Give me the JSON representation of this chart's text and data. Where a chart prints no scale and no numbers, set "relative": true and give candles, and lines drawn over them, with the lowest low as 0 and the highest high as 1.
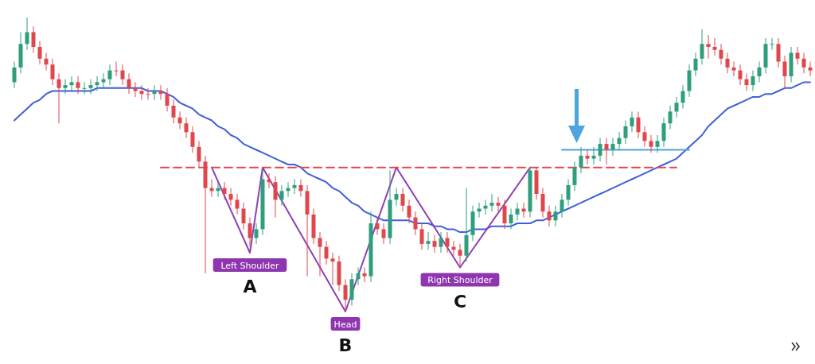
{
  "chart_data": {
    "type": "candlestick",
    "relative": true,
    "categories": [
      null,
      null,
      null,
      null,
      null,
      null,
      null,
      null,
      null,
      null,
      null,
      null,
      null,
      null,
      null,
      null,
      null,
      null,
      null,
      null,
      null,
      null,
      null,
      null,
      null,
      null,
      null,
      null,
      null,
      null,
      null,
      null,
      null,
      null,
      null,
      null,
      null,
      null,
      null,
      null,
      null,
      null,
      null,
      null,
      null,
      null,
      null,
      null,
      null,
      null,
      null,
      null,
      null,
      null,
      null,
      null,
      null,
      null,
      null,
      null,
      null,
      null,
      null,
      null,
      null,
      null,
      null,
      null,
      null,
      null,
      null,
      null,
      null,
      null,
      null,
      null,
      null,
      null,
      null,
      null,
      null,
      null,
      null,
      null,
      null,
      null,
      null,
      null,
      null,
      null,
      null,
      null,
      null,
      null,
      null,
      null,
      null,
      null,
      null,
      null,
      null,
      null,
      null,
      null,
      null,
      null,
      null,
      null,
      null,
      null,
      null,
      null,
      null,
      null,
      null,
      null,
      null,
      null,
      null,
      null,
      null,
      null,
      null,
      null,
      null,
      null
    ],
    "ohlc": [
      [
        0.78,
        0.85,
        0.76,
        0.83
      ],
      [
        0.83,
        0.95,
        0.81,
        0.91
      ],
      [
        0.91,
        1.0,
        0.89,
        0.95
      ],
      [
        0.95,
        0.97,
        0.88,
        0.9
      ],
      [
        0.9,
        0.92,
        0.84,
        0.86
      ],
      [
        0.86,
        0.88,
        0.82,
        0.84
      ],
      [
        0.84,
        0.86,
        0.77,
        0.79
      ],
      [
        0.79,
        0.81,
        0.64,
        0.76
      ],
      [
        0.76,
        0.79,
        0.74,
        0.77
      ],
      [
        0.77,
        0.8,
        0.75,
        0.78
      ],
      [
        0.78,
        0.8,
        0.74,
        0.76
      ],
      [
        0.76,
        0.78,
        0.74,
        0.76
      ],
      [
        0.76,
        0.79,
        0.74,
        0.77
      ],
      [
        0.77,
        0.8,
        0.75,
        0.78
      ],
      [
        0.78,
        0.81,
        0.76,
        0.79
      ],
      [
        0.79,
        0.84,
        0.77,
        0.82
      ],
      [
        0.82,
        0.85,
        0.8,
        0.82
      ],
      [
        0.82,
        0.84,
        0.77,
        0.79
      ],
      [
        0.79,
        0.81,
        0.74,
        0.76
      ],
      [
        0.76,
        0.78,
        0.73,
        0.75
      ],
      [
        0.75,
        0.77,
        0.72,
        0.74
      ],
      [
        0.74,
        0.76,
        0.72,
        0.74
      ],
      [
        0.74,
        0.77,
        0.72,
        0.75
      ],
      [
        0.75,
        0.77,
        0.72,
        0.74
      ],
      [
        0.74,
        0.76,
        0.68,
        0.7
      ],
      [
        0.7,
        0.72,
        0.64,
        0.66
      ],
      [
        0.66,
        0.68,
        0.62,
        0.64
      ],
      [
        0.64,
        0.66,
        0.59,
        0.61
      ],
      [
        0.61,
        0.63,
        0.54,
        0.56
      ],
      [
        0.56,
        0.58,
        0.49,
        0.51
      ],
      [
        0.51,
        0.53,
        0.13,
        0.42
      ],
      [
        0.42,
        0.45,
        0.39,
        0.41
      ],
      [
        0.41,
        0.44,
        0.39,
        0.42
      ],
      [
        0.42,
        0.44,
        0.38,
        0.4
      ],
      [
        0.4,
        0.42,
        0.36,
        0.38
      ],
      [
        0.38,
        0.4,
        0.33,
        0.35
      ],
      [
        0.35,
        0.37,
        0.28,
        0.3
      ],
      [
        0.3,
        0.32,
        0.22,
        0.25
      ],
      [
        0.25,
        0.3,
        0.23,
        0.28
      ],
      [
        0.28,
        0.48,
        0.26,
        0.45
      ],
      [
        0.45,
        0.47,
        0.42,
        0.44
      ],
      [
        0.44,
        0.46,
        0.32,
        0.38
      ],
      [
        0.38,
        0.43,
        0.36,
        0.41
      ],
      [
        0.41,
        0.44,
        0.39,
        0.42
      ],
      [
        0.42,
        0.45,
        0.4,
        0.43
      ],
      [
        0.43,
        0.45,
        0.39,
        0.41
      ],
      [
        0.41,
        0.43,
        0.12,
        0.33
      ],
      [
        0.33,
        0.35,
        0.23,
        0.25
      ],
      [
        0.25,
        0.27,
        0.12,
        0.22
      ],
      [
        0.22,
        0.24,
        0.16,
        0.18
      ],
      [
        0.18,
        0.2,
        0.09,
        0.17
      ],
      [
        0.17,
        0.19,
        0.07,
        0.09
      ],
      [
        0.09,
        0.11,
        0.0,
        0.04
      ],
      [
        0.04,
        0.13,
        0.02,
        0.11
      ],
      [
        0.11,
        0.15,
        0.09,
        0.13
      ],
      [
        0.13,
        0.15,
        0.1,
        0.12
      ],
      [
        0.12,
        0.34,
        0.1,
        0.3
      ],
      [
        0.3,
        0.32,
        0.26,
        0.28
      ],
      [
        0.28,
        0.3,
        0.23,
        0.25
      ],
      [
        0.25,
        0.48,
        0.23,
        0.38
      ],
      [
        0.38,
        0.42,
        0.36,
        0.4
      ],
      [
        0.4,
        0.42,
        0.34,
        0.36
      ],
      [
        0.36,
        0.38,
        0.3,
        0.32
      ],
      [
        0.32,
        0.34,
        0.26,
        0.28
      ],
      [
        0.28,
        0.3,
        0.21,
        0.23
      ],
      [
        0.23,
        0.27,
        0.21,
        0.24
      ],
      [
        0.24,
        0.26,
        0.2,
        0.22
      ],
      [
        0.22,
        0.27,
        0.2,
        0.25
      ],
      [
        0.25,
        0.27,
        0.2,
        0.22
      ],
      [
        0.22,
        0.24,
        0.19,
        0.21
      ],
      [
        0.21,
        0.23,
        0.15,
        0.19
      ],
      [
        0.19,
        0.42,
        0.17,
        0.26
      ],
      [
        0.26,
        0.36,
        0.24,
        0.34
      ],
      [
        0.34,
        0.37,
        0.32,
        0.35
      ],
      [
        0.35,
        0.38,
        0.33,
        0.36
      ],
      [
        0.36,
        0.4,
        0.34,
        0.37
      ],
      [
        0.37,
        0.39,
        0.34,
        0.36
      ],
      [
        0.36,
        0.38,
        0.28,
        0.3
      ],
      [
        0.3,
        0.35,
        0.28,
        0.33
      ],
      [
        0.33,
        0.37,
        0.31,
        0.35
      ],
      [
        0.35,
        0.37,
        0.32,
        0.34
      ],
      [
        0.34,
        0.49,
        0.32,
        0.48
      ],
      [
        0.48,
        0.49,
        0.38,
        0.4
      ],
      [
        0.4,
        0.42,
        0.32,
        0.34
      ],
      [
        0.34,
        0.36,
        0.29,
        0.31
      ],
      [
        0.31,
        0.36,
        0.29,
        0.34
      ],
      [
        0.34,
        0.4,
        0.32,
        0.38
      ],
      [
        0.38,
        0.45,
        0.36,
        0.43
      ],
      [
        0.43,
        0.51,
        0.41,
        0.49
      ],
      [
        0.49,
        0.56,
        0.47,
        0.53
      ],
      [
        0.53,
        0.55,
        0.5,
        0.52
      ],
      [
        0.52,
        0.56,
        0.5,
        0.53
      ],
      [
        0.53,
        0.59,
        0.51,
        0.57
      ],
      [
        0.57,
        0.59,
        0.5,
        0.55
      ],
      [
        0.55,
        0.59,
        0.53,
        0.57
      ],
      [
        0.57,
        0.61,
        0.55,
        0.59
      ],
      [
        0.59,
        0.65,
        0.57,
        0.63
      ],
      [
        0.63,
        0.68,
        0.61,
        0.66
      ],
      [
        0.66,
        0.68,
        0.59,
        0.61
      ],
      [
        0.61,
        0.63,
        0.56,
        0.58
      ],
      [
        0.58,
        0.6,
        0.54,
        0.56
      ],
      [
        0.56,
        0.6,
        0.54,
        0.58
      ],
      [
        0.58,
        0.66,
        0.56,
        0.64
      ],
      [
        0.64,
        0.7,
        0.62,
        0.68
      ],
      [
        0.68,
        0.73,
        0.66,
        0.71
      ],
      [
        0.71,
        0.77,
        0.69,
        0.75
      ],
      [
        0.75,
        0.84,
        0.73,
        0.82
      ],
      [
        0.82,
        0.88,
        0.8,
        0.86
      ],
      [
        0.86,
        0.96,
        0.84,
        0.91
      ],
      [
        0.91,
        0.94,
        0.86,
        0.9
      ],
      [
        0.9,
        0.93,
        0.87,
        0.89
      ],
      [
        0.89,
        0.91,
        0.84,
        0.86
      ],
      [
        0.86,
        0.88,
        0.81,
        0.83
      ],
      [
        0.83,
        0.85,
        0.8,
        0.82
      ],
      [
        0.82,
        0.84,
        0.77,
        0.79
      ],
      [
        0.79,
        0.81,
        0.75,
        0.77
      ],
      [
        0.77,
        0.82,
        0.75,
        0.8
      ],
      [
        0.8,
        0.85,
        0.78,
        0.83
      ],
      [
        0.83,
        0.93,
        0.81,
        0.91
      ],
      [
        0.91,
        0.93,
        0.89,
        0.91
      ],
      [
        0.91,
        0.93,
        0.83,
        0.85
      ],
      [
        0.85,
        0.87,
        0.76,
        0.8
      ],
      [
        0.8,
        0.9,
        0.78,
        0.88
      ],
      [
        0.88,
        0.9,
        0.84,
        0.86
      ],
      [
        0.86,
        0.88,
        0.81,
        0.83
      ],
      [
        0.83,
        0.85,
        0.8,
        0.82
      ]
    ],
    "colors": [
      "#2f9e7c",
      "#2f9e7c",
      "#2f9e7c",
      "#e0474c",
      "#e0474c",
      "#e0474c",
      "#e0474c",
      "#e0474c",
      "#2f9e7c",
      "#2f9e7c",
      "#e0474c",
      "#2f9e7c",
      "#2f9e7c",
      "#2f9e7c",
      "#2f9e7c",
      "#2f9e7c",
      "#e0474c",
      "#e0474c",
      "#e0474c",
      "#e0474c",
      "#e0474c",
      "#e0474c",
      "#2f9e7c",
      "#e0474c",
      "#e0474c",
      "#e0474c",
      "#e0474c",
      "#e0474c",
      "#e0474c",
      "#e0474c",
      "#e0474c",
      "#e0474c",
      "#2f9e7c",
      "#e0474c",
      "#e0474c",
      "#e0474c",
      "#e0474c",
      "#e0474c",
      "#2f9e7c",
      "#2f9e7c",
      "#e0474c",
      "#e0474c",
      "#2f9e7c",
      "#2f9e7c",
      "#2f9e7c",
      "#e0474c",
      "#e0474c",
      "#e0474c",
      "#e0474c",
      "#e0474c",
      "#e0474c",
      "#e0474c",
      "#e0474c",
      "#2f9e7c",
      "#2f9e7c",
      "#e0474c",
      "#2f9e7c",
      "#e0474c",
      "#e0474c",
      "#2f9e7c",
      "#2f9e7c",
      "#e0474c",
      "#e0474c",
      "#e0474c",
      "#e0474c",
      "#2f9e7c",
      "#e0474c",
      "#2f9e7c",
      "#e0474c",
      "#e0474c",
      "#e0474c",
      "#2f9e7c",
      "#2f9e7c",
      "#2f9e7c",
      "#2f9e7c",
      "#2f9e7c",
      "#e0474c",
      "#e0474c",
      "#2f9e7c",
      "#2f9e7c",
      "#e0474c",
      "#2f9e7c",
      "#e0474c",
      "#e0474c",
      "#e0474c",
      "#2f9e7c",
      "#2f9e7c",
      "#2f9e7c",
      "#2f9e7c",
      "#2f9e7c",
      "#e0474c",
      "#2f9e7c",
      "#2f9e7c",
      "#e0474c",
      "#2f9e7c",
      "#2f9e7c",
      "#2f9e7c",
      "#2f9e7c",
      "#e0474c",
      "#e0474c",
      "#e0474c",
      "#2f9e7c",
      "#2f9e7c",
      "#2f9e7c",
      "#2f9e7c",
      "#2f9e7c",
      "#2f9e7c",
      "#2f9e7c",
      "#2f9e7c",
      "#e0474c",
      "#e0474c",
      "#e0474c",
      "#e0474c",
      "#e0474c",
      "#e0474c",
      "#e0474c",
      "#2f9e7c",
      "#2f9e7c",
      "#2f9e7c",
      "#2f9e7c",
      "#e0474c",
      "#e0474c",
      "#2f9e7c",
      "#e0474c",
      "#e0474c",
      "#e0474c"
    ],
    "series": [
      {
        "type": "line",
        "color": "#3f5fd8",
        "values": [
          0.65,
          0.67,
          0.69,
          0.71,
          0.72,
          0.74,
          0.75,
          0.75,
          0.75,
          0.75,
          0.75,
          0.75,
          0.75,
          0.76,
          0.76,
          0.76,
          0.76,
          0.76,
          0.76,
          0.76,
          0.76,
          0.75,
          0.75,
          0.75,
          0.74,
          0.73,
          0.71,
          0.7,
          0.69,
          0.67,
          0.66,
          0.65,
          0.63,
          0.62,
          0.6,
          0.59,
          0.57,
          0.56,
          0.55,
          0.54,
          0.53,
          0.52,
          0.51,
          0.5,
          0.5,
          0.49,
          0.47,
          0.46,
          0.45,
          0.44,
          0.42,
          0.41,
          0.39,
          0.37,
          0.36,
          0.34,
          0.33,
          0.32,
          0.31,
          0.31,
          0.31,
          0.31,
          0.31,
          0.3,
          0.3,
          0.3,
          0.29,
          0.29,
          0.28,
          0.28,
          0.27,
          0.27,
          0.28,
          0.28,
          0.28,
          0.29,
          0.29,
          0.29,
          0.29,
          0.3,
          0.3,
          0.3,
          0.31,
          0.31,
          0.32,
          0.33,
          0.34,
          0.35,
          0.36,
          0.37,
          0.38,
          0.39,
          0.4,
          0.41,
          0.42,
          0.43,
          0.44,
          0.45,
          0.46,
          0.47,
          0.48,
          0.49,
          0.5,
          0.51,
          0.52,
          0.54,
          0.56,
          0.58,
          0.6,
          0.63,
          0.65,
          0.67,
          0.69,
          0.7,
          0.71,
          0.72,
          0.73,
          0.73,
          0.74,
          0.74,
          0.75,
          0.76,
          0.76,
          0.77,
          0.78,
          0.78
        ]
      },
      {
        "type": "line",
        "color": "#8e3fb6",
        "values": [
          null,
          null,
          null,
          null,
          null,
          null,
          null,
          null,
          null,
          null,
          null,
          null,
          null,
          null,
          null,
          null,
          null,
          null,
          null,
          null,
          null,
          null,
          null,
          null,
          null,
          null,
          null,
          null,
          null,
          null,
          null,
          0.49,
          null,
          null,
          null,
          null,
          null,
          0.2,
          null,
          0.49,
          null,
          null,
          null,
          null,
          null,
          null,
          null,
          null,
          null,
          null,
          null,
          null,
          0,
          null,
          null,
          null,
          null,
          null,
          null,
          null,
          0.49,
          null,
          null,
          null,
          null,
          null,
          null,
          null,
          null,
          null,
          0.15,
          null,
          null,
          null,
          null,
          null,
          null,
          null,
          null,
          null,
          null,
          0.49,
          null,
          null,
          null,
          null,
          null,
          null,
          null,
          null,
          null,
          null,
          null,
          null,
          null,
          null,
          null,
          null,
          null,
          null,
          null,
          null,
          null,
          null,
          null,
          null,
          null,
          null,
          null,
          null,
          null,
          null,
          null,
          null,
          null,
          null,
          null,
          null,
          null,
          null,
          null,
          null,
          null,
          null,
          null,
          null
        ]
      },
      {
        "type": "line",
        "color": "#e0474c",
        "line_style": "dashed",
        "values": [
          null,
          null,
          null,
          null,
          null,
          null,
          null,
          null,
          null,
          null,
          null,
          null,
          null,
          null,
          null,
          null,
          null,
          null,
          null,
          null,
          null,
          null,
          null,
          0.49,
          null,
          null,
          null,
          null,
          null,
          null,
          null,
          null,
          null,
          null,
          null,
          null,
          null,
          null,
          null,
          null,
          null,
          null,
          null,
          null,
          null,
          null,
          null,
          null,
          null,
          null,
          null,
          null,
          null,
          null,
          null,
          null,
          null,
          null,
          null,
          null,
          null,
          null,
          null,
          null,
          null,
          null,
          null,
          null,
          null,
          null,
          null,
          null,
          null,
          null,
          null,
          null,
          null,
          null,
          null,
          null,
          null,
          null,
          null,
          null,
          null,
          null,
          null,
          null,
          null,
          null,
          null,
          null,
          null,
          null,
          null,
          null,
          null,
          null,
          null,
          null,
          null,
          null,
          null,
          null,
          0.49,
          null,
          null,
          null,
          null,
          null,
          null,
          null,
          null,
          null,
          null,
          null,
          null,
          null,
          null,
          null,
          null,
          null,
          null,
          null,
          null,
          null
        ]
      },
      {
        "type": "line",
        "color": "#4ea4dc",
        "values": [
          null,
          null,
          null,
          null,
          null,
          null,
          null,
          null,
          null,
          null,
          null,
          null,
          null,
          null,
          null,
          null,
          null,
          null,
          null,
          null,
          null,
          null,
          null,
          null,
          null,
          null,
          null,
          null,
          null,
          null,
          null,
          null,
          null,
          null,
          null,
          null,
          null,
          null,
          null,
          null,
          null,
          null,
          null,
          null,
          null,
          null,
          null,
          null,
          null,
          null,
          null,
          null,
          null,
          null,
          null,
          null,
          null,
          null,
          null,
          null,
          null,
          null,
          null,
          null,
          null,
          null,
          null,
          null,
          null,
          null,
          null,
          null,
          null,
          null,
          null,
          null,
          null,
          null,
          null,
          null,
          null,
          null,
          null,
          null,
          null,
          null,
          0.55,
          null,
          null,
          null,
          null,
          null,
          null,
          null,
          null,
          null,
          null,
          null,
          null,
          null,
          null,
          null,
          null,
          null,
          null,
          null,
          0.55,
          null,
          null,
          null,
          null,
          null,
          null,
          null,
          null,
          null,
          null,
          null,
          null,
          null,
          null,
          null,
          null,
          null,
          null,
          null
        ]
      }
    ],
    "annotations": [
      "Left Shoulder",
      "A",
      "Head",
      "B",
      "Right Shoulder",
      "C"
    ]
  }
}
